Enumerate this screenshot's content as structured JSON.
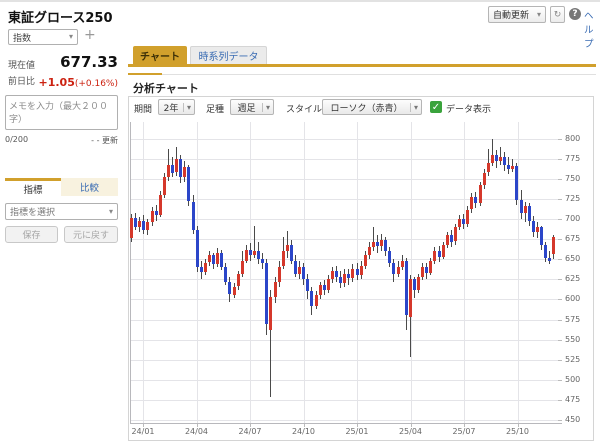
{
  "header": {
    "title": "東証グロース250",
    "instrument_type": "指数",
    "auto_update": "自動更新",
    "help_link": "ヘルプ"
  },
  "icons": {
    "caret": "▾",
    "plus": "+",
    "refresh": "↻",
    "question": "?",
    "check": "✓"
  },
  "quote": {
    "current_label": "現在値",
    "current_value": "677.33",
    "change_label": "前日比",
    "change_value": "+1.05",
    "change_percent": "(+0.16%)"
  },
  "memo": {
    "placeholder": "メモを入力（最大２００字）",
    "counter": "0/200",
    "update_label": "- - 更新"
  },
  "left_tabs": {
    "indicator": "指標",
    "compare": "比較"
  },
  "indicator_select": {
    "placeholder": "指標を選択"
  },
  "left_buttons": {
    "save": "保存",
    "reset": "元に戻す"
  },
  "main_tabs": {
    "chart": "チャート",
    "timeseries": "時系列データ"
  },
  "section_title": "分析チャート",
  "controls": {
    "period_label": "期間",
    "period_value": "2年",
    "interval_label": "足種",
    "interval_value": "週足",
    "style_label": "スタイル",
    "style_value": "ローソク（赤青）",
    "data_display_label": "データ表示"
  },
  "colors": {
    "accent_gold": "#d1a02c",
    "up": "#d5382b",
    "down": "#2b46c9",
    "link_blue": "#3a6cb3",
    "change_red": "#cc2211"
  },
  "chart_data": {
    "type": "candlestick",
    "title": "東証グロース250 週足 2年",
    "x_tick_labels": [
      "24/01",
      "24/04",
      "24/07",
      "24/10",
      "25/01",
      "25/04",
      "25/07",
      "25/10"
    ],
    "y_ticks": [
      450,
      475,
      500,
      525,
      550,
      575,
      600,
      625,
      650,
      675,
      700,
      725,
      750,
      775,
      800
    ],
    "ylim": [
      446,
      821
    ],
    "grid": true,
    "legend": "none",
    "up_color": "#d5382b",
    "down_color": "#2b46c9",
    "ohlc": [
      [
        677,
        706,
        671,
        702
      ],
      [
        702,
        708,
        686,
        690
      ],
      [
        690,
        703,
        684,
        698
      ],
      [
        698,
        705,
        681,
        686
      ],
      [
        686,
        700,
        680,
        696
      ],
      [
        696,
        715,
        692,
        710
      ],
      [
        710,
        718,
        698,
        705
      ],
      [
        705,
        735,
        703,
        730
      ],
      [
        730,
        758,
        726,
        752
      ],
      [
        752,
        788,
        748,
        768
      ],
      [
        768,
        778,
        752,
        758
      ],
      [
        758,
        790,
        754,
        775
      ],
      [
        775,
        780,
        745,
        752
      ],
      [
        752,
        772,
        746,
        765
      ],
      [
        765,
        768,
        716,
        722
      ],
      [
        722,
        730,
        682,
        686
      ],
      [
        686,
        692,
        634,
        640
      ],
      [
        640,
        648,
        625,
        634
      ],
      [
        634,
        650,
        630,
        646
      ],
      [
        646,
        660,
        642,
        655
      ],
      [
        655,
        658,
        638,
        644
      ],
      [
        644,
        664,
        640,
        658
      ],
      [
        658,
        662,
        636,
        640
      ],
      [
        640,
        645,
        618,
        622
      ],
      [
        622,
        628,
        597,
        606
      ],
      [
        606,
        620,
        602,
        616
      ],
      [
        616,
        636,
        612,
        632
      ],
      [
        632,
        660,
        628,
        648
      ],
      [
        648,
        668,
        645,
        662
      ],
      [
        662,
        670,
        648,
        655
      ],
      [
        655,
        692,
        652,
        660
      ],
      [
        660,
        672,
        644,
        650
      ],
      [
        650,
        658,
        638,
        645
      ],
      [
        645,
        650,
        556,
        569
      ],
      [
        562,
        612,
        478,
        603
      ],
      [
        603,
        628,
        596,
        622
      ],
      [
        622,
        648,
        615,
        641
      ],
      [
        641,
        678,
        638,
        660
      ],
      [
        660,
        685,
        652,
        668
      ],
      [
        668,
        674,
        644,
        648
      ],
      [
        648,
        655,
        628,
        632
      ],
      [
        632,
        648,
        626,
        640
      ],
      [
        640,
        645,
        618,
        625
      ],
      [
        625,
        632,
        600,
        610
      ],
      [
        610,
        615,
        580,
        592
      ],
      [
        592,
        610,
        588,
        605
      ],
      [
        605,
        622,
        600,
        618
      ],
      [
        618,
        624,
        605,
        612
      ],
      [
        612,
        630,
        608,
        625
      ],
      [
        625,
        640,
        620,
        635
      ],
      [
        635,
        642,
        622,
        628
      ],
      [
        628,
        635,
        614,
        620
      ],
      [
        620,
        638,
        616,
        632
      ],
      [
        632,
        638,
        618,
        626
      ],
      [
        626,
        644,
        622,
        638
      ],
      [
        638,
        645,
        624,
        630
      ],
      [
        630,
        648,
        626,
        642
      ],
      [
        642,
        660,
        638,
        655
      ],
      [
        655,
        672,
        650,
        665
      ],
      [
        665,
        690,
        660,
        672
      ],
      [
        672,
        680,
        658,
        666
      ],
      [
        666,
        682,
        660,
        674
      ],
      [
        674,
        678,
        654,
        660
      ],
      [
        660,
        665,
        640,
        645
      ],
      [
        645,
        650,
        622,
        632
      ],
      [
        632,
        648,
        628,
        640
      ],
      [
        640,
        655,
        636,
        648
      ],
      [
        648,
        652,
        562,
        580
      ],
      [
        578,
        630,
        528,
        625
      ],
      [
        625,
        628,
        602,
        612
      ],
      [
        612,
        632,
        608,
        628
      ],
      [
        628,
        645,
        624,
        640
      ],
      [
        640,
        646,
        626,
        633
      ],
      [
        633,
        652,
        630,
        648
      ],
      [
        648,
        665,
        644,
        660
      ],
      [
        660,
        666,
        646,
        653
      ],
      [
        653,
        672,
        650,
        668
      ],
      [
        668,
        684,
        664,
        680
      ],
      [
        680,
        686,
        665,
        672
      ],
      [
        672,
        694,
        668,
        690
      ],
      [
        690,
        705,
        686,
        700
      ],
      [
        700,
        706,
        688,
        694
      ],
      [
        694,
        716,
        690,
        712
      ],
      [
        712,
        732,
        708,
        728
      ],
      [
        728,
        734,
        714,
        720
      ],
      [
        720,
        746,
        716,
        742
      ],
      [
        742,
        762,
        738,
        758
      ],
      [
        758,
        788,
        754,
        770
      ],
      [
        770,
        800,
        766,
        780
      ],
      [
        780,
        786,
        764,
        772
      ],
      [
        772,
        790,
        768,
        778
      ],
      [
        778,
        784,
        760,
        768
      ],
      [
        768,
        778,
        756,
        762
      ],
      [
        762,
        775,
        758,
        766
      ],
      [
        766,
        770,
        718,
        724
      ],
      [
        724,
        736,
        700,
        708
      ],
      [
        708,
        722,
        696,
        716
      ],
      [
        716,
        720,
        692,
        698
      ],
      [
        698,
        704,
        678,
        684
      ],
      [
        684,
        696,
        676,
        690
      ],
      [
        690,
        692,
        662,
        668
      ],
      [
        668,
        672,
        646,
        652
      ],
      [
        652,
        660,
        644,
        648
      ],
      [
        656,
        680,
        650,
        677.33
      ]
    ]
  }
}
